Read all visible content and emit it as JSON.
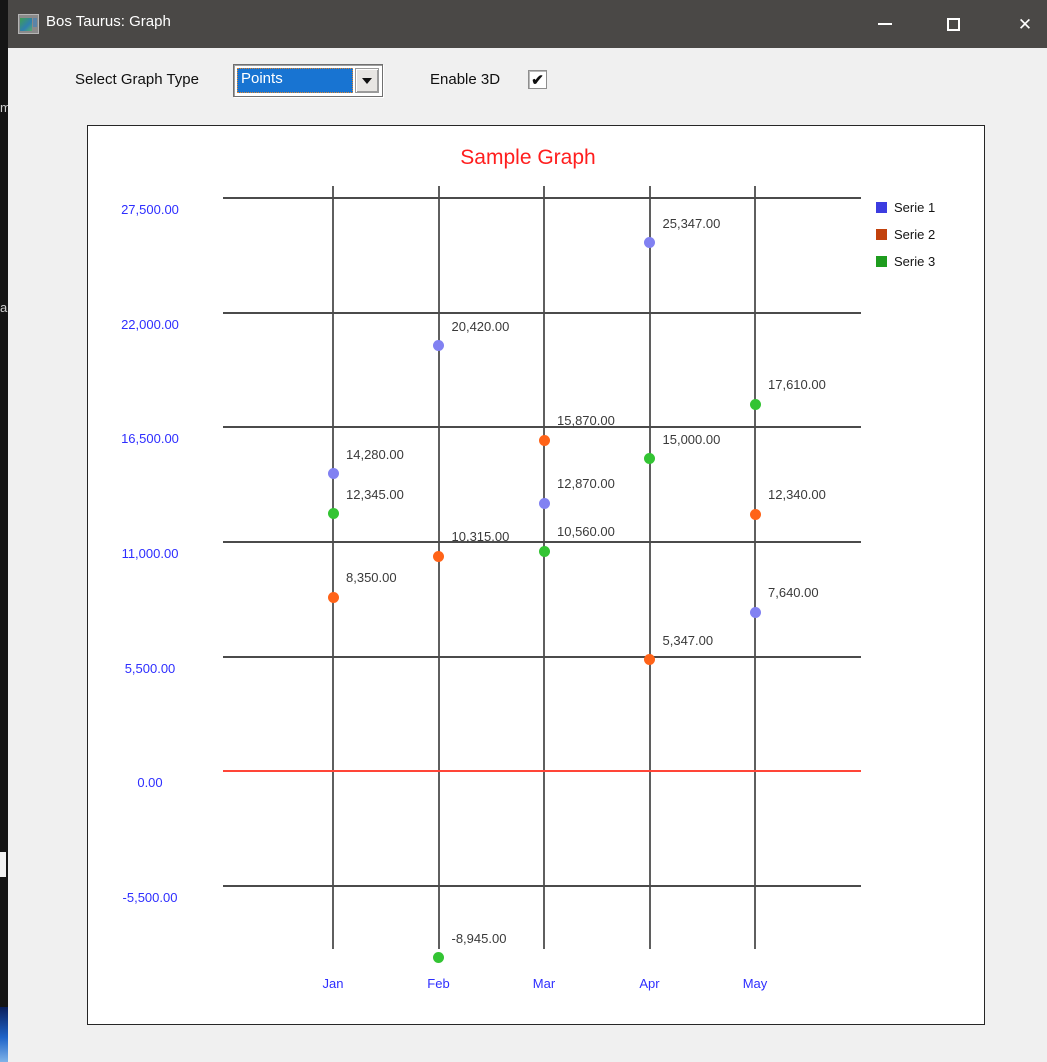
{
  "background": {
    "fragments": [
      "m",
      "a"
    ]
  },
  "window": {
    "title": "Bos Taurus: Graph",
    "controls": {
      "minimize": "",
      "maximize": "",
      "close": "✕"
    }
  },
  "toolbar": {
    "graph_type_label": "Select Graph Type",
    "graph_type_value": "Points",
    "enable_3d_label": "Enable 3D",
    "enable_3d_checked": true,
    "checkmark": "✔"
  },
  "chart_data": {
    "type": "scatter",
    "title": "Sample Graph",
    "title_color": "#ff1e1e",
    "axis_label_color": "#2e2eff",
    "grid": true,
    "legend_position": "right-top",
    "categories": [
      "Jan",
      "Feb",
      "Mar",
      "Apr",
      "May"
    ],
    "y_ticks": [
      27500,
      22000,
      16500,
      11000,
      5500,
      0,
      -5500
    ],
    "y_tick_labels": [
      "27,500.00",
      "22,000.00",
      "16,500.00",
      "11,000.00",
      "5,500.00",
      "0.00",
      "-5,500.00"
    ],
    "ylim": [
      -5500,
      27500
    ],
    "zero_line_color": "#ff4538",
    "series": [
      {
        "name": "Serie 1",
        "point_color": "#8181f2",
        "legend_color": "#3c3ce0",
        "values": [
          14280,
          20420,
          12870,
          25347,
          7640
        ],
        "labels": [
          "14,280.00",
          "20,420.00",
          "12,870.00",
          "25,347.00",
          "7,640.00"
        ]
      },
      {
        "name": "Serie 2",
        "point_color": "#ff6318",
        "legend_color": "#c2410c",
        "values": [
          8350,
          10315,
          15870,
          5347,
          12340
        ],
        "labels": [
          "8,350.00",
          "10,315.00",
          "15,870.00",
          "5,347.00",
          "12,340.00"
        ]
      },
      {
        "name": "Serie 3",
        "point_color": "#33c433",
        "legend_color": "#1e9c1e",
        "values": [
          12345,
          -8945,
          10560,
          15000,
          17610
        ],
        "labels": [
          "12,345.00",
          "-8,945.00",
          "10,560.00",
          "15,000.00",
          "17,610.00"
        ]
      }
    ]
  }
}
